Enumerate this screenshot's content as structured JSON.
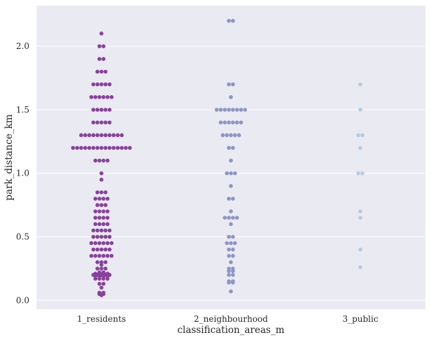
{
  "chart_data": {
    "type": "scatter",
    "subtype": "swarm",
    "xlabel": "classification_areas_m",
    "ylabel": "park_distance_km",
    "categories": [
      "1_residents",
      "2_neighbourhood",
      "3_public"
    ],
    "ylim": [
      -0.07,
      2.32
    ],
    "yticks": [
      "0.0",
      "0.5",
      "1.0",
      "1.5",
      "2.0"
    ],
    "ytick_values": [
      0.0,
      0.5,
      1.0,
      1.5,
      2.0
    ],
    "grid": true,
    "background": "#eaeaf2",
    "colors": [
      "#88419d",
      "#8c96c6",
      "#b3cde3"
    ],
    "series": [
      {
        "category": "1_residents",
        "values": [
          2.1,
          2.0,
          2.0,
          1.9,
          1.9,
          1.8,
          1.8,
          1.8,
          1.7,
          1.7,
          1.7,
          1.7,
          1.7,
          1.6,
          1.6,
          1.6,
          1.6,
          1.6,
          1.6,
          1.5,
          1.5,
          1.5,
          1.5,
          1.5,
          1.4,
          1.4,
          1.4,
          1.4,
          1.4,
          1.3,
          1.3,
          1.3,
          1.3,
          1.3,
          1.3,
          1.3,
          1.3,
          1.3,
          1.3,
          1.3,
          1.2,
          1.2,
          1.2,
          1.2,
          1.2,
          1.2,
          1.2,
          1.2,
          1.2,
          1.2,
          1.2,
          1.2,
          1.2,
          1.2,
          1.2,
          1.1,
          1.1,
          1.1,
          1.1,
          1.0,
          0.95,
          0.85,
          0.85,
          0.85,
          0.8,
          0.8,
          0.8,
          0.8,
          0.75,
          0.75,
          0.75,
          0.7,
          0.7,
          0.7,
          0.7,
          0.65,
          0.65,
          0.65,
          0.65,
          0.6,
          0.6,
          0.6,
          0.6,
          0.55,
          0.55,
          0.55,
          0.55,
          0.55,
          0.5,
          0.5,
          0.5,
          0.5,
          0.5,
          0.45,
          0.45,
          0.45,
          0.45,
          0.45,
          0.45,
          0.4,
          0.4,
          0.4,
          0.4,
          0.4,
          0.35,
          0.35,
          0.35,
          0.35,
          0.35,
          0.35,
          0.3,
          0.3,
          0.3,
          0.28,
          0.25,
          0.25,
          0.25,
          0.22,
          0.22,
          0.21,
          0.21,
          0.21,
          0.21,
          0.2,
          0.2,
          0.2,
          0.2,
          0.2,
          0.19,
          0.19,
          0.19,
          0.19,
          0.17,
          0.17,
          0.17,
          0.17,
          0.13,
          0.13,
          0.1,
          0.06,
          0.06,
          0.05,
          0.05,
          0.04
        ]
      },
      {
        "category": "2_neighbourhood",
        "values": [
          2.2,
          2.2,
          1.7,
          1.7,
          1.6,
          1.5,
          1.5,
          1.5,
          1.5,
          1.5,
          1.5,
          1.5,
          1.5,
          1.4,
          1.4,
          1.4,
          1.4,
          1.4,
          1.4,
          1.3,
          1.3,
          1.3,
          1.3,
          1.3,
          1.2,
          1.2,
          1.1,
          1.0,
          1.0,
          1.0,
          0.9,
          0.8,
          0.8,
          0.7,
          0.65,
          0.65,
          0.65,
          0.65,
          0.6,
          0.5,
          0.5,
          0.45,
          0.45,
          0.45,
          0.4,
          0.4,
          0.35,
          0.35,
          0.3,
          0.25,
          0.25,
          0.23,
          0.23,
          0.2,
          0.2,
          0.15,
          0.15,
          0.14,
          0.14,
          0.07
        ]
      },
      {
        "category": "3_public",
        "values": [
          1.7,
          1.5,
          1.3,
          1.3,
          1.2,
          1.0,
          1.0,
          0.7,
          0.65,
          0.4,
          0.26
        ]
      }
    ]
  }
}
